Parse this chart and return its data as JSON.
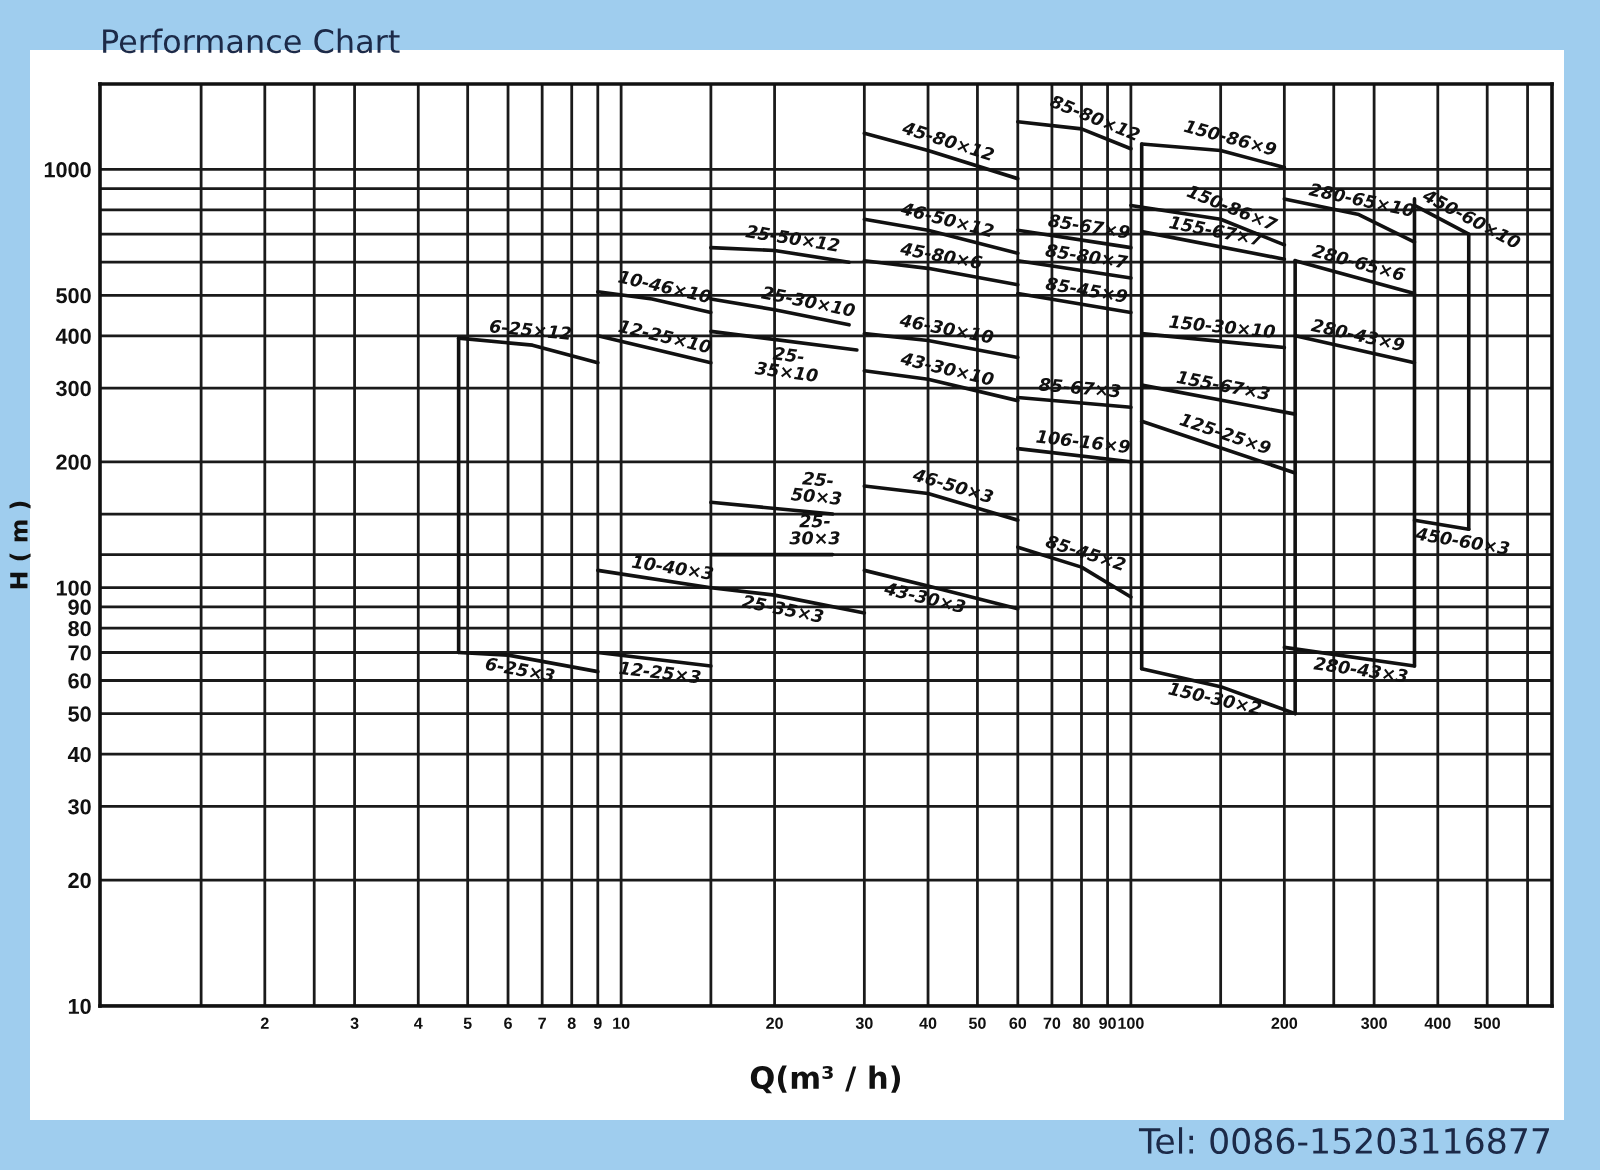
{
  "chart_data": {
    "type": "line",
    "title": "Performance Chart",
    "xlabel": "Q(m³ / h)",
    "ylabel": "H ( m )",
    "log": "xy",
    "grid": true,
    "xlim": [
      0.95,
      670
    ],
    "ylim": [
      10,
      1600
    ],
    "xticks": [
      {
        "value": 1.5,
        "label": null
      },
      2,
      {
        "value": 2.5,
        "label": null
      },
      3,
      4,
      5,
      6,
      7,
      8,
      9,
      10,
      {
        "value": 15,
        "label": null
      },
      20,
      30,
      40,
      50,
      60,
      70,
      80,
      90,
      100,
      {
        "value": 150,
        "label": null
      },
      200,
      {
        "value": 250,
        "label": null
      },
      300,
      400,
      500,
      {
        "value": 600,
        "label": null
      }
    ],
    "yticks": [
      10,
      20,
      30,
      40,
      50,
      60,
      70,
      80,
      90,
      100,
      {
        "value": 120,
        "label": null
      },
      {
        "value": 150,
        "label": null
      },
      200,
      300,
      400,
      500,
      {
        "value": 600,
        "label": null
      },
      {
        "value": 700,
        "label": null
      },
      {
        "value": 800,
        "label": null
      },
      {
        "value": 900,
        "label": null
      },
      1000
    ],
    "series": [
      {
        "color": "#111111",
        "x": [
          4.8,
          6.7,
          9
        ],
        "values": [
          395,
          380,
          345
        ]
      },
      {
        "color": "#111111",
        "x": [
          4.8,
          6,
          9
        ],
        "values": [
          70,
          69,
          63
        ]
      },
      {
        "color": "#111111",
        "x": [
          9,
          11.5,
          15
        ],
        "values": [
          510,
          490,
          455
        ]
      },
      {
        "color": "#111111",
        "x": [
          9,
          15
        ],
        "values": [
          400,
          345
        ]
      },
      {
        "color": "#111111",
        "x": [
          9,
          15
        ],
        "values": [
          110,
          100
        ]
      },
      {
        "color": "#111111",
        "x": [
          9,
          15
        ],
        "values": [
          70,
          65
        ]
      },
      {
        "color": "#111111",
        "x": [
          15,
          20,
          28
        ],
        "values": [
          650,
          640,
          600
        ]
      },
      {
        "color": "#111111",
        "x": [
          15,
          20,
          28
        ],
        "values": [
          490,
          462,
          425
        ]
      },
      {
        "color": "#111111",
        "x": [
          15,
          29
        ],
        "values": [
          410,
          370
        ]
      },
      {
        "color": "#111111",
        "x": [
          15,
          26
        ],
        "values": [
          160,
          150
        ]
      },
      {
        "color": "#111111",
        "x": [
          15,
          26
        ],
        "values": [
          120,
          120
        ]
      },
      {
        "color": "#111111",
        "x": [
          15,
          20,
          30
        ],
        "values": [
          100,
          96,
          87
        ]
      },
      {
        "color": "#111111",
        "x": [
          30,
          40,
          60
        ],
        "values": [
          1220,
          1110,
          950
        ]
      },
      {
        "color": "#111111",
        "x": [
          30,
          40,
          60
        ],
        "values": [
          760,
          715,
          630
        ]
      },
      {
        "color": "#111111",
        "x": [
          30,
          40,
          60
        ],
        "values": [
          605,
          580,
          530
        ]
      },
      {
        "color": "#111111",
        "x": [
          30,
          40,
          60
        ],
        "values": [
          405,
          390,
          355
        ]
      },
      {
        "color": "#111111",
        "x": [
          30,
          40,
          60
        ],
        "values": [
          330,
          315,
          280
        ]
      },
      {
        "color": "#111111",
        "x": [
          30,
          40,
          60
        ],
        "values": [
          175,
          168,
          145
        ]
      },
      {
        "color": "#111111",
        "x": [
          30,
          40,
          60
        ],
        "values": [
          110,
          101,
          89
        ]
      },
      {
        "color": "#111111",
        "x": [
          60,
          80,
          100
        ],
        "values": [
          1300,
          1250,
          1120
        ]
      },
      {
        "color": "#111111",
        "x": [
          60,
          100
        ],
        "values": [
          715,
          650
        ]
      },
      {
        "color": "#111111",
        "x": [
          60,
          100
        ],
        "values": [
          605,
          550
        ]
      },
      {
        "color": "#111111",
        "x": [
          60,
          100
        ],
        "values": [
          505,
          455
        ]
      },
      {
        "color": "#111111",
        "x": [
          60,
          100
        ],
        "values": [
          285,
          270
        ]
      },
      {
        "color": "#111111",
        "x": [
          60,
          100
        ],
        "values": [
          215,
          200
        ]
      },
      {
        "color": "#111111",
        "x": [
          60,
          80,
          100
        ],
        "values": [
          125,
          112,
          95
        ]
      },
      {
        "color": "#111111",
        "x": [
          105,
          150,
          200
        ],
        "values": [
          1150,
          1110,
          1010
        ]
      },
      {
        "color": "#111111",
        "x": [
          100,
          150,
          200
        ],
        "values": [
          820,
          760,
          660
        ]
      },
      {
        "color": "#111111",
        "x": [
          105,
          200
        ],
        "values": [
          710,
          610
        ]
      },
      {
        "color": "#111111",
        "x": [
          105,
          200
        ],
        "values": [
          405,
          375
        ]
      },
      {
        "color": "#111111",
        "x": [
          105,
          210
        ],
        "values": [
          305,
          260
        ]
      },
      {
        "color": "#111111",
        "x": [
          105,
          210
        ],
        "values": [
          250,
          188
        ]
      },
      {
        "color": "#111111",
        "x": [
          105,
          150,
          210
        ],
        "values": [
          64,
          58,
          50
        ]
      },
      {
        "color": "#111111",
        "x": [
          200,
          280,
          360
        ],
        "values": [
          850,
          780,
          670
        ]
      },
      {
        "color": "#111111",
        "x": [
          210,
          360
        ],
        "values": [
          605,
          505
        ]
      },
      {
        "color": "#111111",
        "x": [
          210,
          360
        ],
        "values": [
          400,
          345
        ]
      },
      {
        "color": "#111111",
        "x": [
          200,
          360
        ],
        "values": [
          72,
          65
        ]
      },
      {
        "color": "#111111",
        "x": [
          360,
          460
        ],
        "values": [
          820,
          700
        ]
      },
      {
        "color": "#111111",
        "x": [
          360,
          460
        ],
        "values": [
          145,
          138
        ]
      },
      {
        "color": "#111111",
        "x": [
          4.8,
          4.8
        ],
        "values": [
          395,
          70
        ]
      },
      {
        "color": "#111111",
        "x": [
          105,
          105
        ],
        "values": [
          1150,
          64
        ]
      },
      {
        "color": "#111111",
        "x": [
          210,
          210
        ],
        "values": [
          605,
          50
        ]
      },
      {
        "color": "#111111",
        "x": [
          360,
          360
        ],
        "values": [
          850,
          65
        ]
      },
      {
        "color": "#111111",
        "x": [
          460,
          460
        ],
        "values": [
          700,
          138
        ]
      }
    ],
    "annotations": [
      {
        "text": "6-25×12",
        "x": 6.6,
        "y": 381
      },
      {
        "text": "6-25×3",
        "x": 6.4,
        "y": 68
      },
      {
        "text": "10-46×10",
        "x": 12,
        "y": 484
      },
      {
        "text": "12-25×10",
        "x": 12,
        "y": 368
      },
      {
        "text": "10-40×3",
        "x": 12.5,
        "y": 103
      },
      {
        "text": "12-25×3",
        "x": 12,
        "y": 67
      },
      {
        "text": "25-50×12",
        "x": 21.5,
        "y": 631
      },
      {
        "text": "25-30×10",
        "x": 23,
        "y": 446
      },
      {
        "text": "25-\n35×10",
        "x": 21.5,
        "y": 388
      },
      {
        "text": "25-\n50×3",
        "x": 24,
        "y": 151
      },
      {
        "text": "25-\n30×3",
        "x": 24,
        "y": 120
      },
      {
        "text": "25-35×3",
        "x": 21,
        "y": 95
      },
      {
        "text": "45-80×12",
        "x": 43,
        "y": 1080
      },
      {
        "text": "46-50×12",
        "x": 43,
        "y": 700
      },
      {
        "text": "45-80×6",
        "x": 42,
        "y": 574
      },
      {
        "text": "46-30×10",
        "x": 43,
        "y": 384
      },
      {
        "text": "43-30×10",
        "x": 43,
        "y": 308
      },
      {
        "text": "46-50×3",
        "x": 44,
        "y": 162
      },
      {
        "text": "43-30×3",
        "x": 40,
        "y": 101
      },
      {
        "text": "85-80×12",
        "x": 83,
        "y": 1230
      },
      {
        "text": "85-67×9",
        "x": 82,
        "y": 674
      },
      {
        "text": "85-80×7",
        "x": 81,
        "y": 572
      },
      {
        "text": "85-45×9",
        "x": 81,
        "y": 475
      },
      {
        "text": "85-67×3",
        "x": 79,
        "y": 277
      },
      {
        "text": "106-16×9",
        "x": 80,
        "y": 206
      },
      {
        "text": "85-45×2",
        "x": 80,
        "y": 112
      },
      {
        "text": "150-86×9",
        "x": 154,
        "y": 1100
      },
      {
        "text": "150-86×7",
        "x": 154,
        "y": 750
      },
      {
        "text": "155-67×7",
        "x": 145,
        "y": 658
      },
      {
        "text": "150-30×10",
        "x": 150,
        "y": 388
      },
      {
        "text": "155-67×3",
        "x": 150,
        "y": 281
      },
      {
        "text": "125-25×9",
        "x": 150,
        "y": 216
      },
      {
        "text": "150-30×2",
        "x": 148,
        "y": 58
      },
      {
        "text": "280-65×10",
        "x": 280,
        "y": 780
      },
      {
        "text": "280-65×6",
        "x": 275,
        "y": 553
      },
      {
        "text": "280-43×9",
        "x": 275,
        "y": 371
      },
      {
        "text": "280-43×3",
        "x": 285,
        "y": 68
      },
      {
        "text": "450-60×10",
        "x": 452,
        "y": 708
      },
      {
        "text": "450-60×3",
        "x": 452,
        "y": 138
      },
      "Tel: 0086-15203116877"
    ]
  }
}
